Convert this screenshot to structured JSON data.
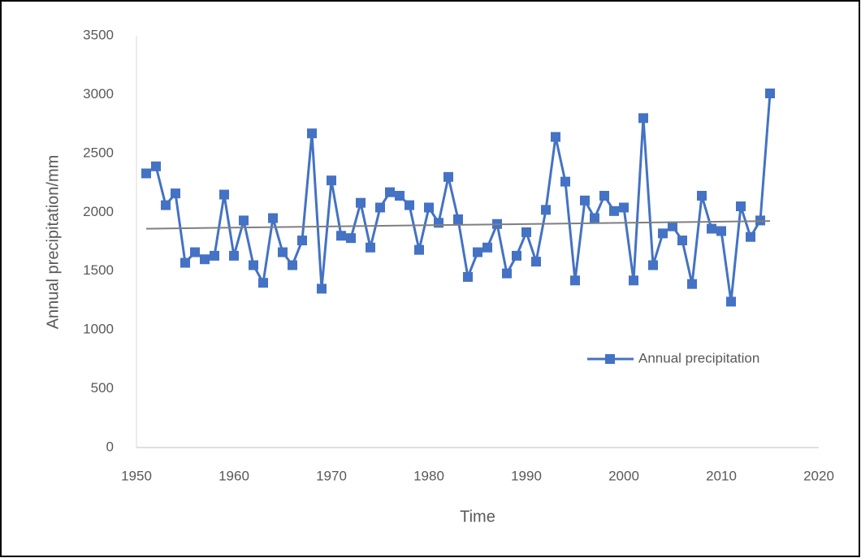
{
  "chart_data": {
    "type": "line",
    "x_label": "Time",
    "y_label": "Annual precipitation/mm",
    "x": [
      1951,
      1952,
      1953,
      1954,
      1955,
      1956,
      1957,
      1958,
      1959,
      1960,
      1961,
      1962,
      1963,
      1964,
      1965,
      1966,
      1967,
      1968,
      1969,
      1970,
      1971,
      1972,
      1973,
      1974,
      1975,
      1976,
      1977,
      1978,
      1979,
      1980,
      1981,
      1982,
      1983,
      1984,
      1985,
      1986,
      1987,
      1988,
      1989,
      1990,
      1991,
      1992,
      1993,
      1994,
      1995,
      1996,
      1997,
      1998,
      1999,
      2000,
      2001,
      2002,
      2003,
      2004,
      2005,
      2006,
      2007,
      2008,
      2009,
      2010,
      2011,
      2012,
      2013,
      2014,
      2015
    ],
    "series": [
      {
        "name": "Annual precipitation",
        "color": "#4472c4",
        "values": [
          2330,
          2390,
          2060,
          2160,
          1570,
          1660,
          1600,
          1630,
          2150,
          1630,
          1930,
          1550,
          1400,
          1950,
          1660,
          1550,
          1760,
          2670,
          1350,
          2270,
          1800,
          1780,
          2080,
          1700,
          2040,
          2170,
          2140,
          2060,
          1680,
          2040,
          1910,
          2300,
          1940,
          1450,
          1660,
          1700,
          1900,
          1480,
          1630,
          1830,
          1580,
          2020,
          2640,
          2260,
          1420,
          2100,
          1950,
          2140,
          2010,
          2040,
          1420,
          2800,
          1550,
          1820,
          1880,
          1760,
          1390,
          2140,
          1860,
          1840,
          1240,
          2050,
          1790,
          1930,
          3010
        ]
      }
    ],
    "trendline": {
      "x": [
        1951,
        2015
      ],
      "values": [
        1860,
        1925
      ],
      "color": "#7f7f7f"
    },
    "xlim": [
      1950,
      2020
    ],
    "xticks": [
      1950,
      1960,
      1970,
      1980,
      1990,
      2000,
      2010,
      2020
    ],
    "ylim": [
      0,
      3500
    ],
    "yticks": [
      0,
      500,
      1000,
      1500,
      2000,
      2500,
      3000,
      3500
    ],
    "legend": "right"
  }
}
